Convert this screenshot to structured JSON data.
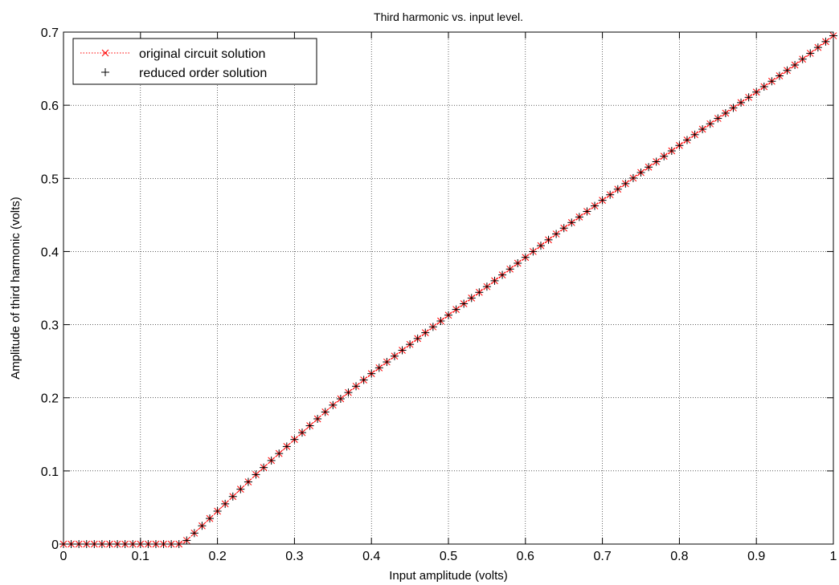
{
  "chart_data": {
    "type": "line",
    "title": "Third harmonic vs. input level.",
    "xlabel": "Input amplitude (volts)",
    "ylabel": "Amplitude of third harmonic (volts)",
    "xlim": [
      0,
      1
    ],
    "ylim": [
      0,
      0.7
    ],
    "xticks": [
      0,
      0.1,
      0.2,
      0.3,
      0.4,
      0.5,
      0.6,
      0.7,
      0.8,
      0.9,
      1
    ],
    "xtick_labels": [
      "0",
      "0.1",
      "0.2",
      "0.3",
      "0.4",
      "0.5",
      "0.6",
      "0.7",
      "0.8",
      "0.9",
      "1"
    ],
    "yticks": [
      0,
      0.1,
      0.2,
      0.3,
      0.4,
      0.5,
      0.6,
      0.7
    ],
    "ytick_labels": [
      "0",
      "0.1",
      "0.2",
      "0.3",
      "0.4",
      "0.5",
      "0.6",
      "0.7"
    ],
    "grid": true,
    "legend_position": "top-left",
    "series": [
      {
        "name": "original circuit solution",
        "color": "#ff0000",
        "marker": "x",
        "line": "dotted",
        "x": [
          0,
          0.1,
          0.15,
          0.16,
          0.18,
          0.2,
          0.25,
          0.3,
          0.35,
          0.4,
          0.45,
          0.5,
          0.55,
          0.6,
          0.65,
          0.7,
          0.75,
          0.8,
          0.85,
          0.9,
          0.95,
          1
        ],
        "y": [
          0,
          0,
          0,
          0.005,
          0.025,
          0.045,
          0.095,
          0.143,
          0.19,
          0.233,
          0.273,
          0.313,
          0.352,
          0.392,
          0.432,
          0.47,
          0.508,
          0.545,
          0.582,
          0.618,
          0.655,
          0.695
        ]
      },
      {
        "name": "reduced order solution",
        "color": "#000000",
        "marker": "+",
        "line": "none",
        "x": [
          0,
          0.1,
          0.15,
          0.16,
          0.18,
          0.2,
          0.25,
          0.3,
          0.35,
          0.4,
          0.45,
          0.5,
          0.55,
          0.6,
          0.65,
          0.7,
          0.75,
          0.8,
          0.85,
          0.9,
          0.95,
          1
        ],
        "y": [
          0,
          0,
          0,
          0.005,
          0.025,
          0.045,
          0.095,
          0.143,
          0.19,
          0.233,
          0.273,
          0.313,
          0.352,
          0.392,
          0.432,
          0.47,
          0.508,
          0.545,
          0.582,
          0.618,
          0.655,
          0.695
        ]
      }
    ]
  }
}
